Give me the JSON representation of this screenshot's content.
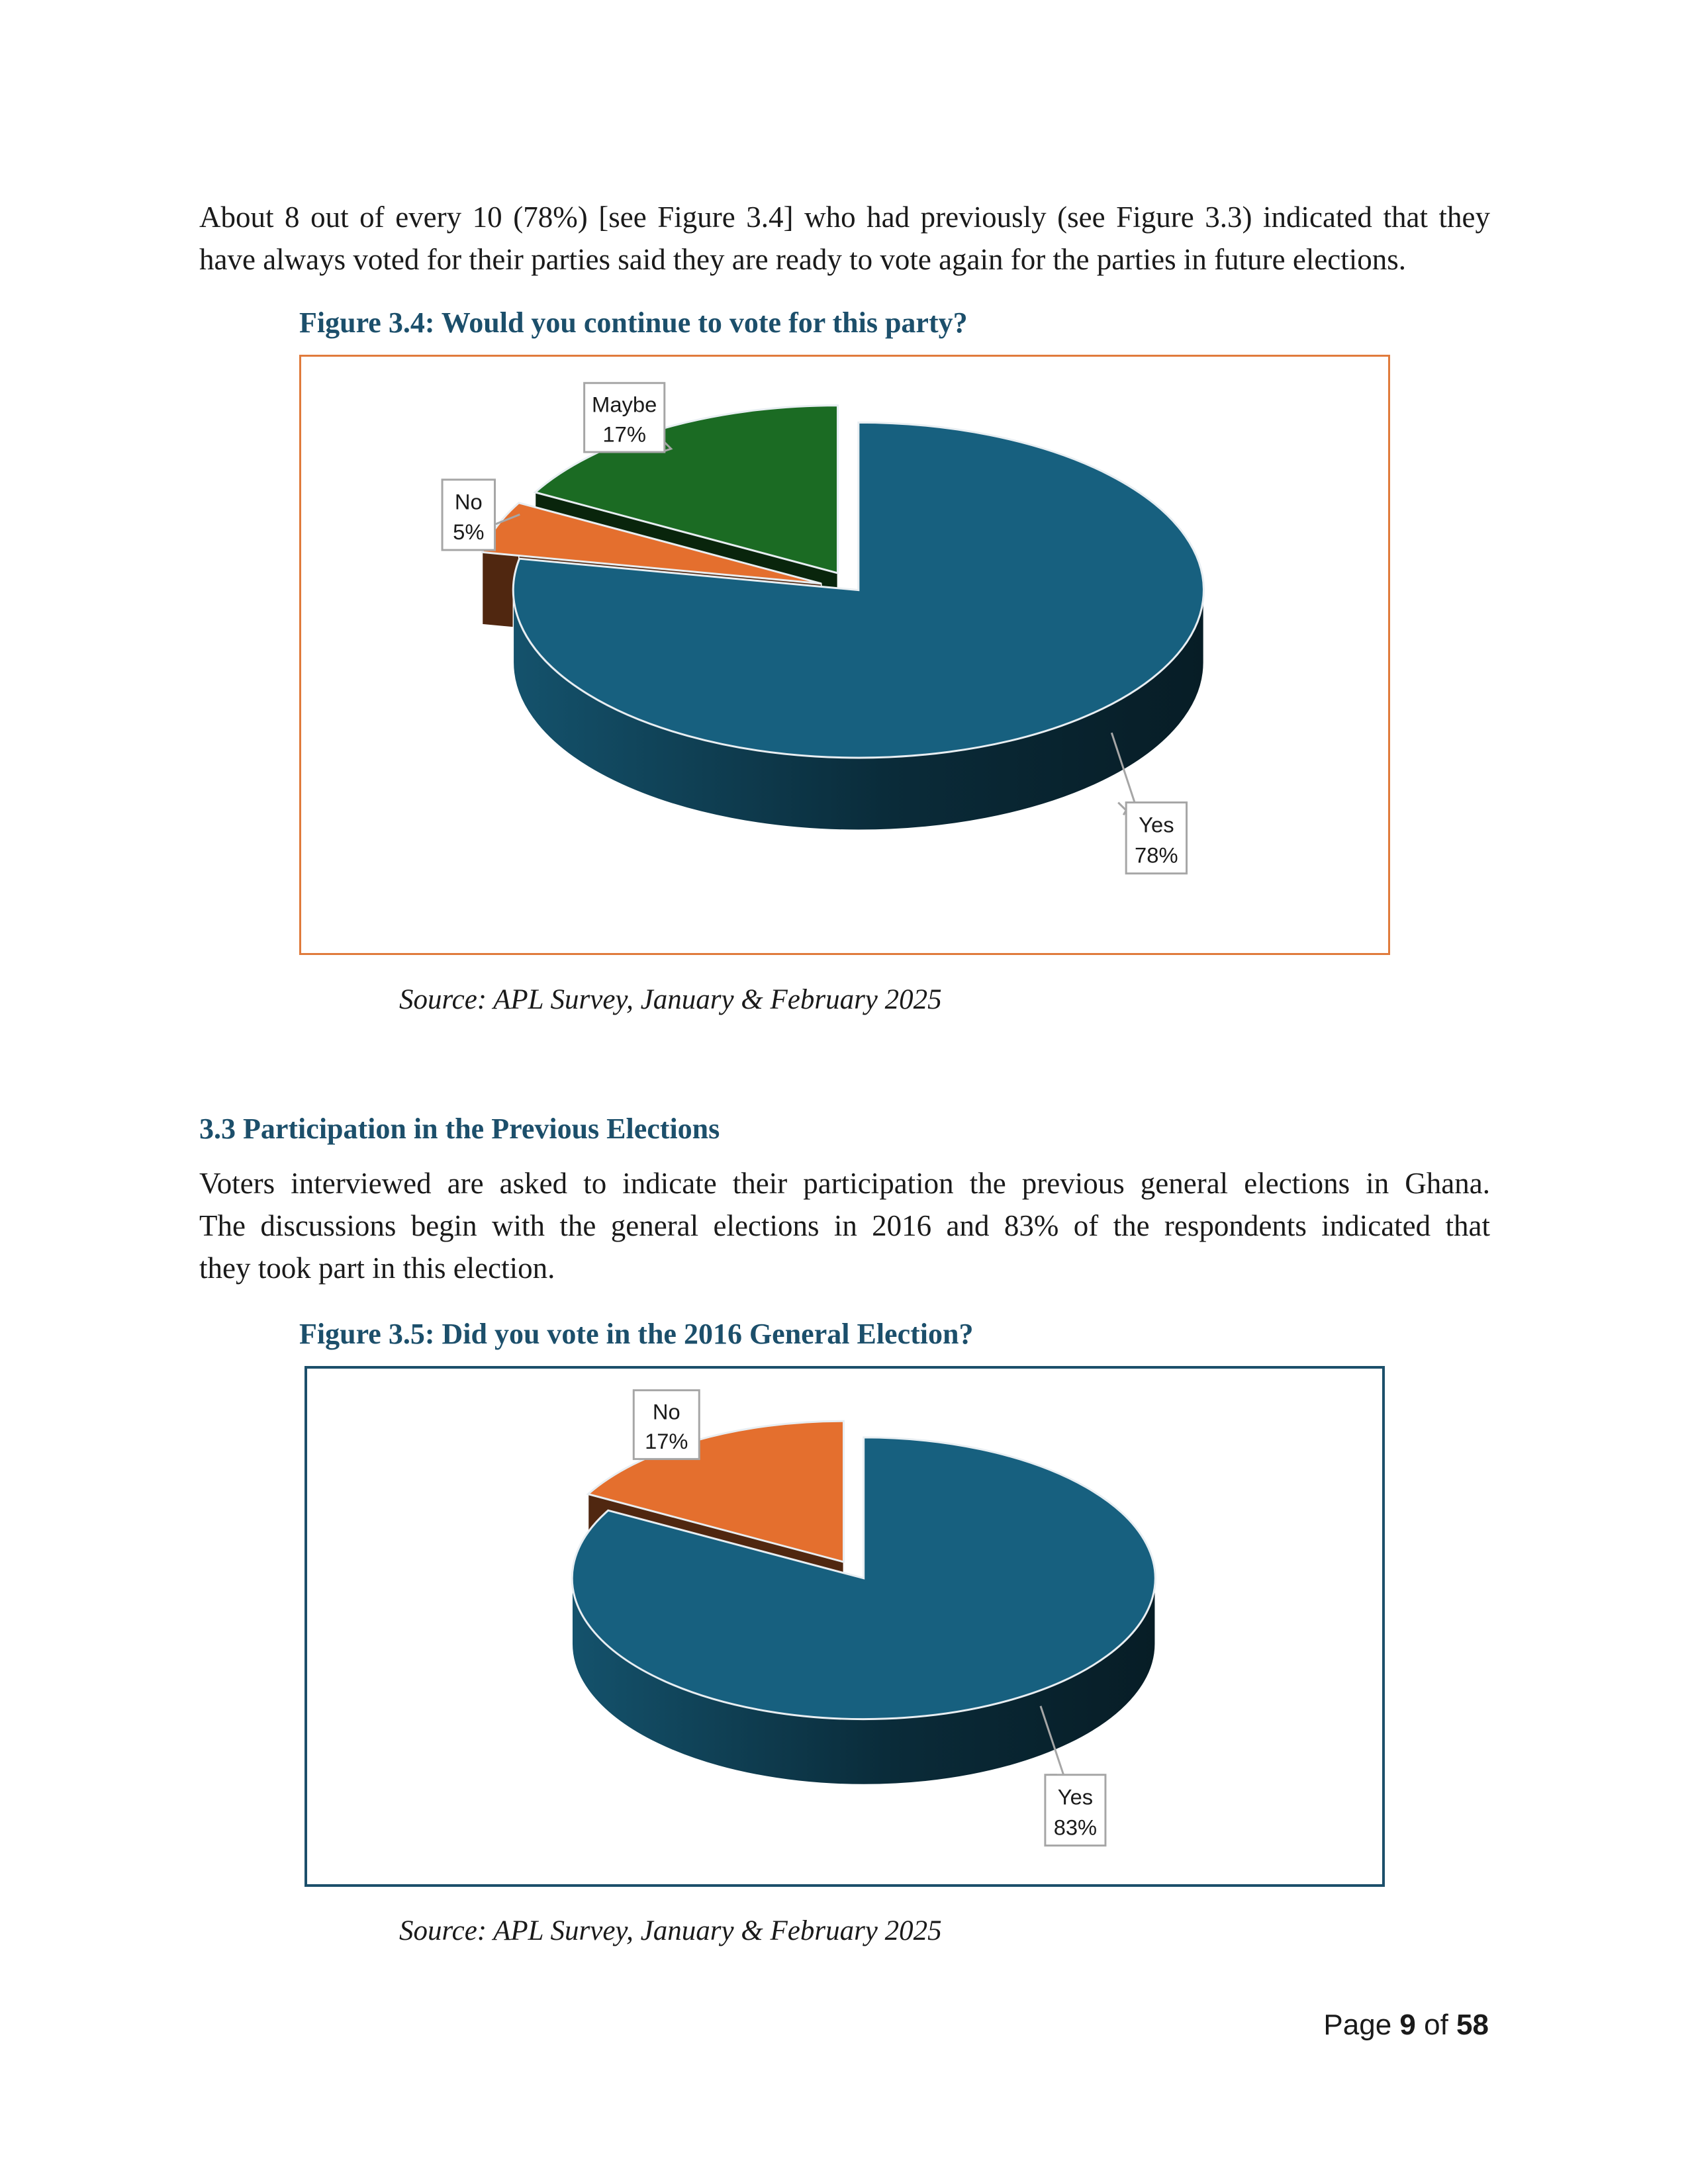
{
  "intro": {
    "lines": [
      "About 8 out of every 10 (78%) [see Figure 3.4] who had previously (see Figure 3.3) indicated that they",
      "have always voted for their parties said they are ready to vote again for the parties in future elections."
    ]
  },
  "figure_3_4": {
    "title": "Figure 3.4: Would you continue to vote for this party?",
    "source": "Source: APL Survey, January & February 2025",
    "border_color": "#e07b3c"
  },
  "section_3_3": {
    "heading": "3.3 Participation in the Previous Elections",
    "lines": [
      "Voters interviewed are asked to indicate their participation the previous general elections in Ghana.",
      "The discussions begin with the general elections in 2016 and 83% of the respondents indicated that",
      "they took part in this election."
    ]
  },
  "figure_3_5": {
    "title": "Figure 3.5: Did you vote in the 2016 General Election?",
    "source": "Source: APL Survey, January & February 2025",
    "border_color": "#1c4f6b"
  },
  "footer": {
    "prefix": "Page ",
    "page": "9",
    "sep": " of ",
    "total": "58"
  },
  "colors": {
    "heading": "#1c4f6b",
    "yes": "#17607f",
    "no": "#e46f2e",
    "maybe": "#1b6b23"
  },
  "chart_data": [
    {
      "type": "pie",
      "title": "Figure 3.4: Would you continue to vote for this party?",
      "categories": [
        "Yes",
        "No",
        "Maybe"
      ],
      "values": [
        78,
        5,
        17
      ],
      "labels": [
        {
          "name": "Yes",
          "pct": "78%"
        },
        {
          "name": "No",
          "pct": "5%"
        },
        {
          "name": "Maybe",
          "pct": "17%"
        }
      ],
      "colors": [
        "#17607f",
        "#e46f2e",
        "#1b6b23"
      ],
      "style": "3d-exploded"
    },
    {
      "type": "pie",
      "title": "Figure 3.5: Did you vote in the 2016 General Election?",
      "categories": [
        "Yes",
        "No"
      ],
      "values": [
        83,
        17
      ],
      "labels": [
        {
          "name": "Yes",
          "pct": "83%"
        },
        {
          "name": "No",
          "pct": "17%"
        }
      ],
      "colors": [
        "#17607f",
        "#e46f2e"
      ],
      "style": "3d-exploded"
    }
  ]
}
